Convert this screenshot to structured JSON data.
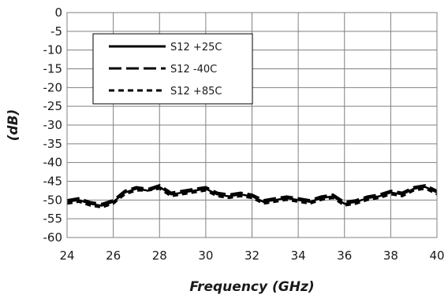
{
  "chart_data": {
    "type": "line",
    "xlabel": "Frequency (GHz)",
    "ylabel": "(dB)",
    "xlim": [
      24,
      40
    ],
    "ylim": [
      -60,
      0
    ],
    "x_ticks": [
      "24",
      "26",
      "28",
      "30",
      "32",
      "34",
      "36",
      "38",
      "40"
    ],
    "y_ticks": [
      "0",
      "-5",
      "-10",
      "-15",
      "-20",
      "-25",
      "-30",
      "-35",
      "-40",
      "-45",
      "-50",
      "-55",
      "-60"
    ],
    "grid": true,
    "legend_position": "top-left",
    "series": [
      {
        "name": "S12 +25C",
        "style": "solid",
        "x": [
          24.0,
          24.5,
          25.0,
          25.5,
          26.0,
          26.5,
          27.0,
          27.5,
          28.0,
          28.5,
          29.0,
          29.5,
          30.0,
          30.5,
          31.0,
          31.5,
          32.0,
          32.5,
          33.0,
          33.5,
          34.0,
          34.5,
          35.0,
          35.5,
          36.0,
          36.5,
          37.0,
          37.5,
          38.0,
          38.5,
          39.0,
          39.5,
          40.0
        ],
        "y": [
          -50.5,
          -50.0,
          -51.0,
          -51.5,
          -50.5,
          -48.0,
          -47.0,
          -47.5,
          -46.5,
          -48.5,
          -48.0,
          -47.5,
          -47.0,
          -48.5,
          -49.0,
          -48.5,
          -49.0,
          -50.5,
          -50.0,
          -49.5,
          -50.0,
          -50.5,
          -49.5,
          -49.0,
          -51.0,
          -50.5,
          -49.5,
          -49.0,
          -48.0,
          -48.5,
          -47.0,
          -46.5,
          -48.0
        ]
      },
      {
        "name": "S12 -40C",
        "style": "long-dash",
        "x": [
          24.0,
          24.5,
          25.0,
          25.5,
          26.0,
          26.5,
          27.0,
          27.5,
          28.0,
          28.5,
          29.0,
          29.5,
          30.0,
          30.5,
          31.0,
          31.5,
          32.0,
          32.5,
          33.0,
          33.5,
          34.0,
          34.5,
          35.0,
          35.5,
          36.0,
          36.5,
          37.0,
          37.5,
          38.0,
          38.5,
          39.0,
          39.5,
          40.0
        ],
        "y": [
          -50.0,
          -49.5,
          -50.5,
          -51.0,
          -50.0,
          -47.5,
          -46.5,
          -47.0,
          -46.0,
          -48.0,
          -47.5,
          -47.0,
          -46.5,
          -48.0,
          -48.5,
          -48.0,
          -48.5,
          -50.0,
          -49.5,
          -49.0,
          -49.5,
          -50.0,
          -49.0,
          -48.5,
          -50.5,
          -50.0,
          -49.0,
          -48.5,
          -47.5,
          -48.0,
          -46.5,
          -46.0,
          -47.5
        ]
      },
      {
        "name": "S12 +85C",
        "style": "short-dash",
        "x": [
          24.0,
          24.5,
          25.0,
          25.5,
          26.0,
          26.5,
          27.0,
          27.5,
          28.0,
          28.5,
          29.0,
          29.5,
          30.0,
          30.5,
          31.0,
          31.5,
          32.0,
          32.5,
          33.0,
          33.5,
          34.0,
          34.5,
          35.0,
          35.5,
          36.0,
          36.5,
          37.0,
          37.5,
          38.0,
          38.5,
          39.0,
          39.5,
          40.0
        ],
        "y": [
          -51.0,
          -50.5,
          -51.5,
          -52.0,
          -51.0,
          -48.5,
          -47.5,
          -47.5,
          -47.0,
          -49.0,
          -48.5,
          -48.0,
          -47.5,
          -49.0,
          -49.5,
          -49.0,
          -49.5,
          -51.0,
          -50.5,
          -50.0,
          -50.5,
          -51.0,
          -50.0,
          -49.5,
          -51.5,
          -51.0,
          -50.0,
          -49.5,
          -48.5,
          -49.0,
          -47.5,
          -47.0,
          -48.5
        ]
      }
    ]
  }
}
